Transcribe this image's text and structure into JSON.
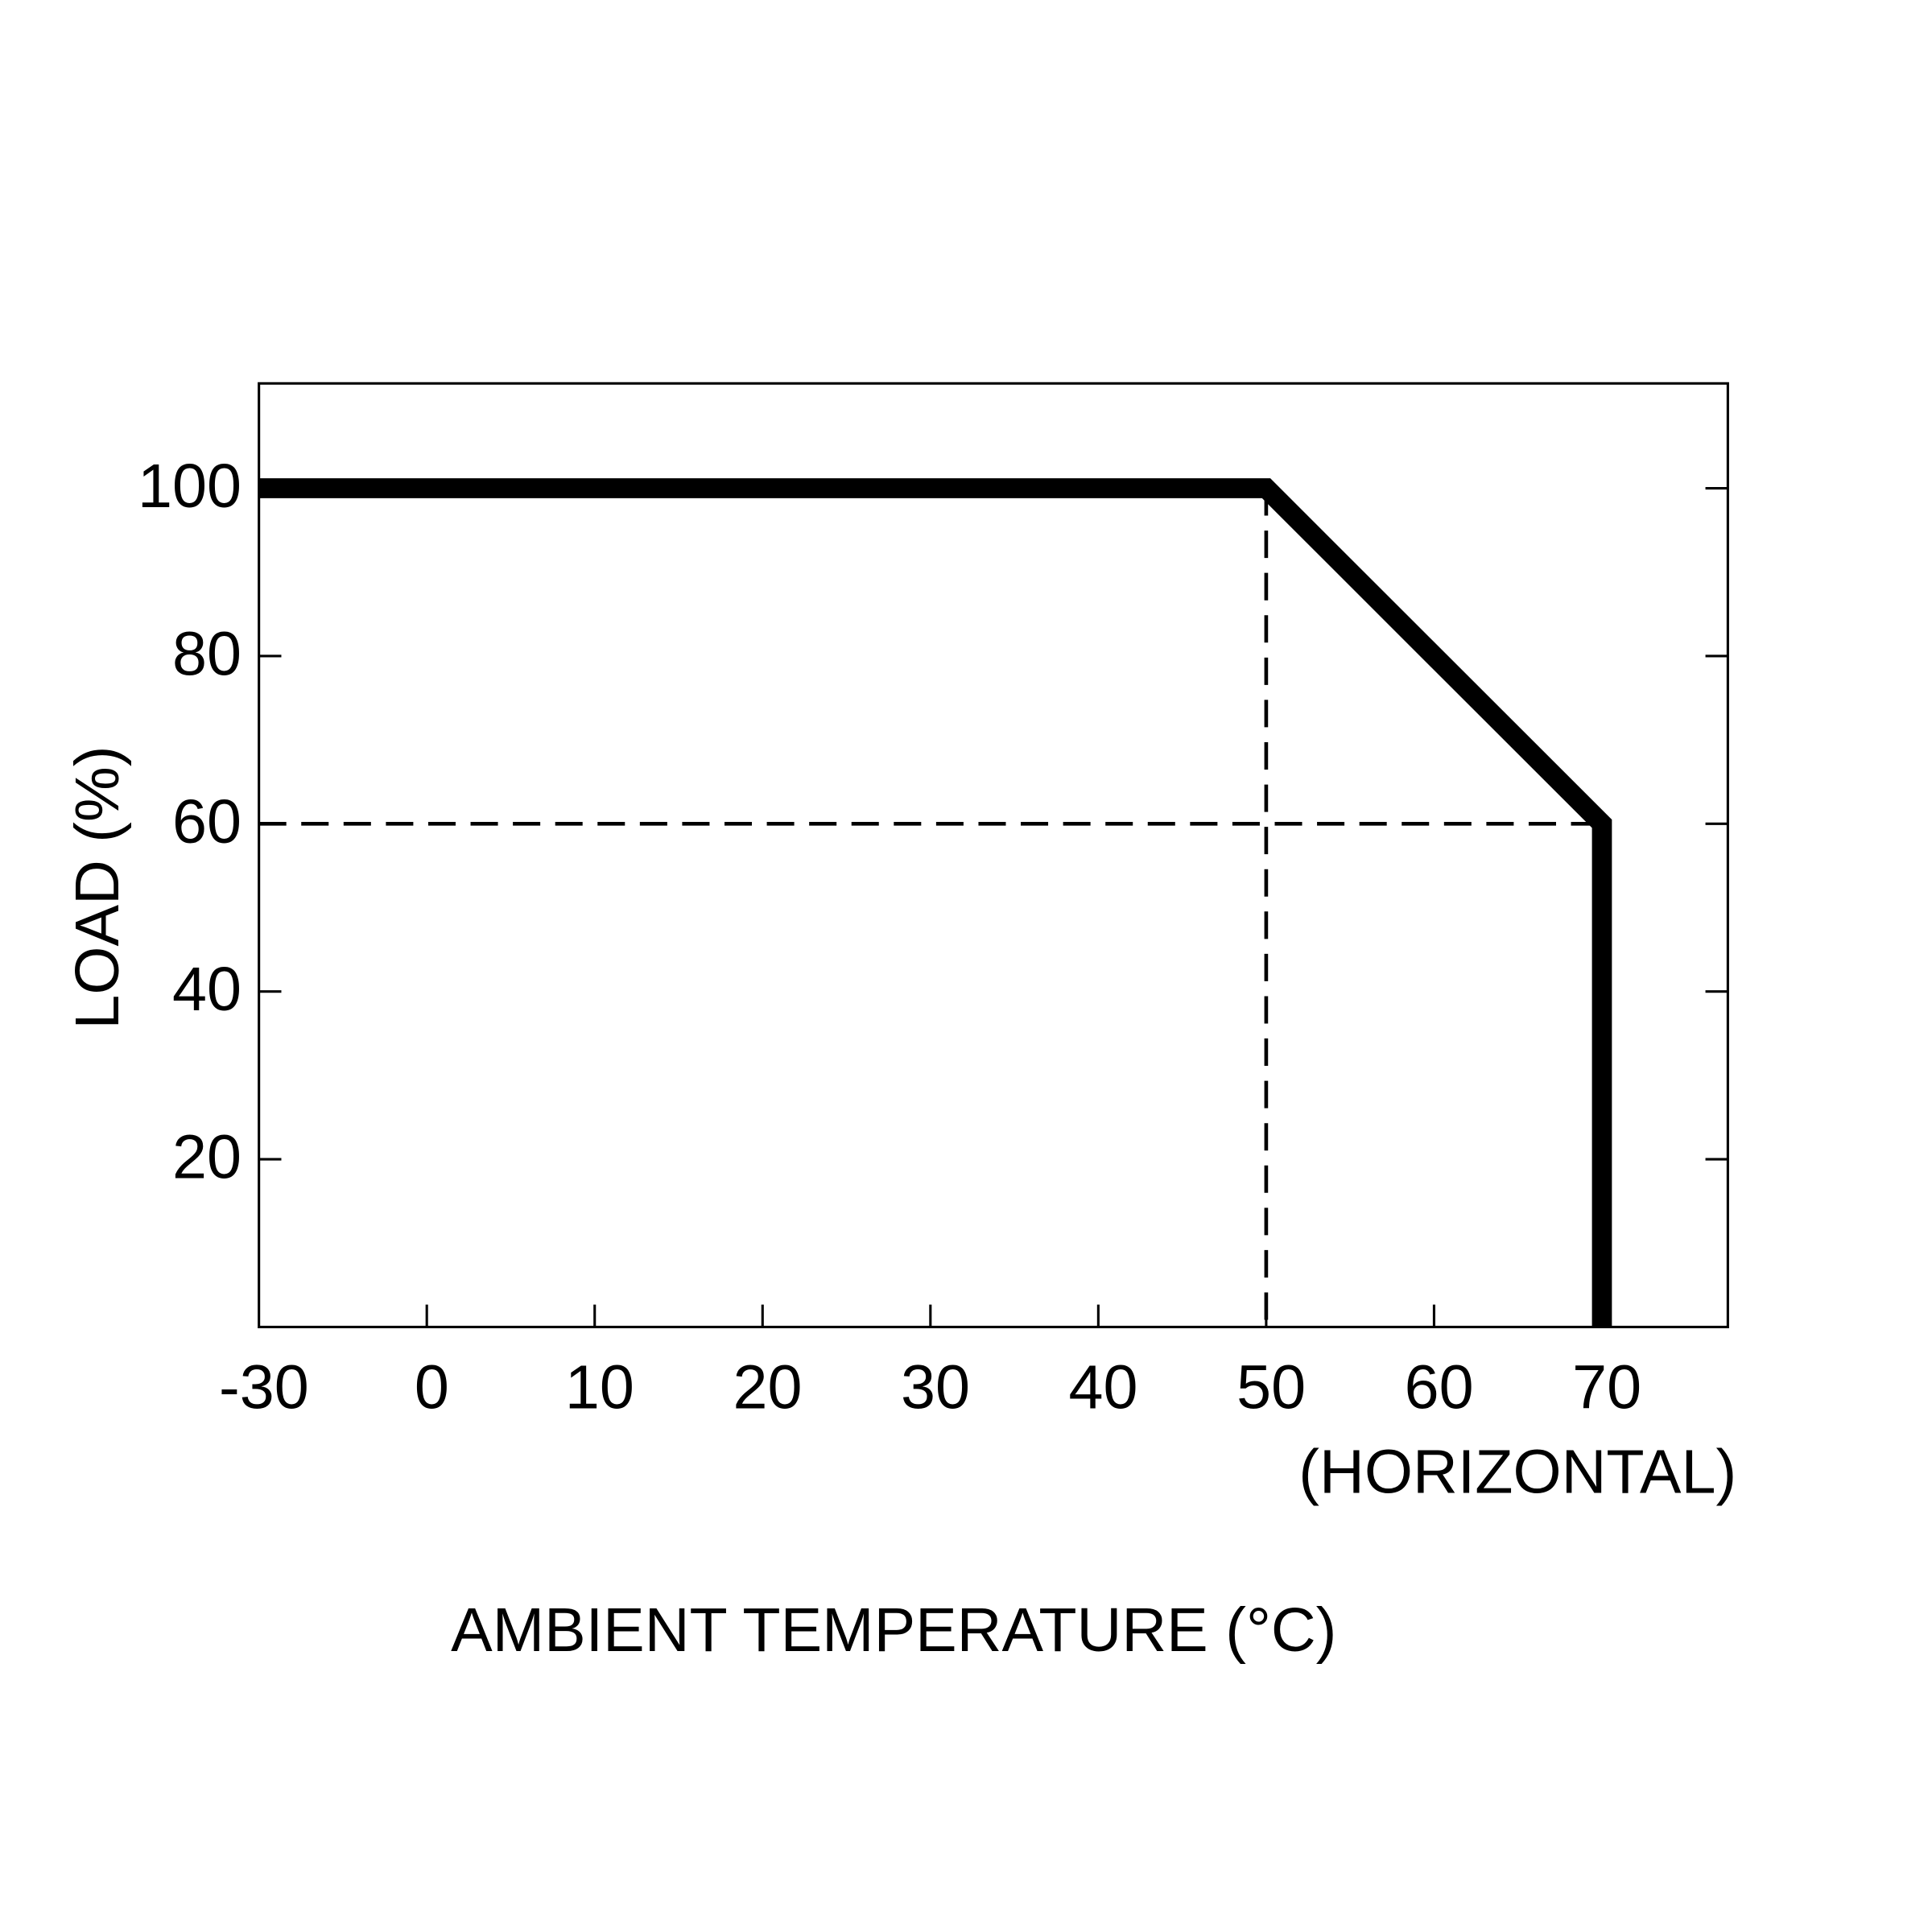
{
  "chart_data": {
    "type": "line",
    "xlabel": "AMBIENT TEMPERATURE (°C)",
    "ylabel": "LOAD (%)",
    "annotation": "(HORIZONTAL)",
    "x": [
      -30,
      50,
      70,
      70
    ],
    "series": [
      {
        "values": [
          100,
          100,
          60,
          0
        ],
        "color": "#000000"
      }
    ],
    "xlim": [
      -30,
      77.5
    ],
    "xticks": [
      -30,
      0,
      10,
      20,
      30,
      40,
      50,
      60,
      70
    ],
    "ylim": [
      0,
      112.5
    ],
    "yticks": [
      20,
      40,
      60,
      80,
      100
    ],
    "grid": false
  }
}
